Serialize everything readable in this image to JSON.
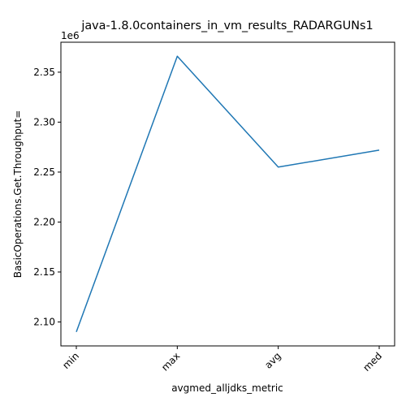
{
  "chart_data": {
    "type": "line",
    "title": "java-1.8.0containers_in_vm_results_RADARGUNs1",
    "xlabel": "avgmed_alljdks_metric",
    "ylabel": "BasicOperations.Get.Throughput=",
    "categories": [
      "min",
      "max",
      "avg",
      "med"
    ],
    "series": [
      {
        "values": [
          2090000,
          2366000,
          2255000,
          2272000
        ],
        "color": "#1f77b4"
      }
    ],
    "yticks": [
      2.1,
      2.15,
      2.2,
      2.25,
      2.3,
      2.35
    ],
    "ytick_labels": [
      "2.10",
      "2.15",
      "2.20",
      "2.25",
      "2.30",
      "2.35"
    ],
    "y_scale_label": "1e6",
    "ylim": [
      2076000,
      2380000
    ],
    "grid": false,
    "legend": "none"
  }
}
